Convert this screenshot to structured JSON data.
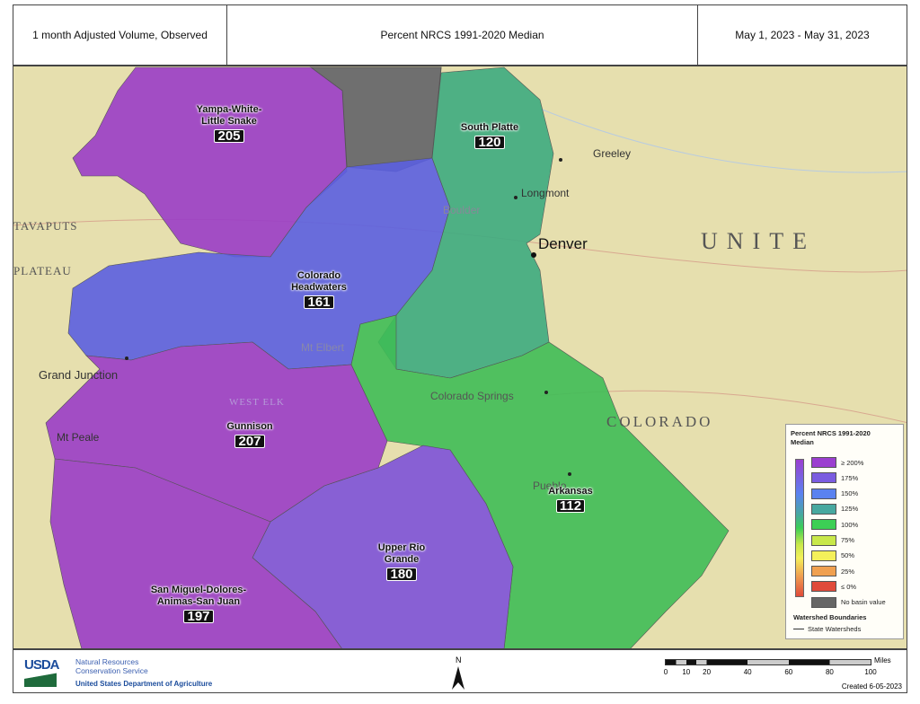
{
  "header": {
    "left": "1 month Adjusted Volume, Observed",
    "center": "Percent NRCS 1991-2020 Median",
    "right": "May 1, 2023 - May 31, 2023"
  },
  "basins": [
    {
      "name": "Yampa-White-Little Snake",
      "value": "205",
      "color": "#9a3dc6"
    },
    {
      "name": "South Platte",
      "value": "120",
      "color": "#3dab80"
    },
    {
      "name": "Colorado Headwaters",
      "value": "161",
      "color": "#5b5fe0"
    },
    {
      "name": "Gunnison",
      "value": "207",
      "color": "#9a3dc6"
    },
    {
      "name": "Arkansas",
      "value": "112",
      "color": "#3fbd57"
    },
    {
      "name": "Upper Rio Grande",
      "value": "180",
      "color": "#7d52d8"
    },
    {
      "name": "San Miguel-Dolores-Animas-San Juan",
      "value": "197",
      "color": "#9a3dc6"
    }
  ],
  "no_basin_color": "#6f6f6f",
  "places": [
    "Greeley",
    "Longmont",
    "Boulder",
    "Denver",
    "Colorado Springs",
    "Pueblo",
    "Grand Junction",
    "Mt Peale",
    "Mt Elbert",
    "UNITE",
    "COLORADO",
    "TAVAPUTS",
    "PLATEAU",
    "WEST ELK"
  ],
  "legend": {
    "title": "Percent NRCS 1991-2020 Median",
    "items": [
      {
        "label": "≥ 200%",
        "color": "#9b3fd0"
      },
      {
        "label": "175%",
        "color": "#7a5ce0"
      },
      {
        "label": "150%",
        "color": "#5a82f0"
      },
      {
        "label": "125%",
        "color": "#47a8a0"
      },
      {
        "label": "100%",
        "color": "#3ccf55"
      },
      {
        "label": "75%",
        "color": "#c8e84a"
      },
      {
        "label": "50%",
        "color": "#f4f05a"
      },
      {
        "label": "25%",
        "color": "#f0a050"
      },
      {
        "label": "≤ 0%",
        "color": "#e04a3a"
      },
      {
        "label": "No basin value",
        "color": "#666666"
      }
    ],
    "boundaries_title": "Watershed Boundaries",
    "boundary_item": "State Watersheds"
  },
  "footer": {
    "agency_logo": "USDA",
    "agency_line1": "Natural Resources",
    "agency_line2": "Conservation Service",
    "department": "United States Department of Agriculture",
    "north": "N",
    "scale_unit": "Miles",
    "scale_ticks": [
      "0",
      "10",
      "20",
      "40",
      "60",
      "80",
      "100"
    ],
    "created": "Created 6-05-2023"
  }
}
